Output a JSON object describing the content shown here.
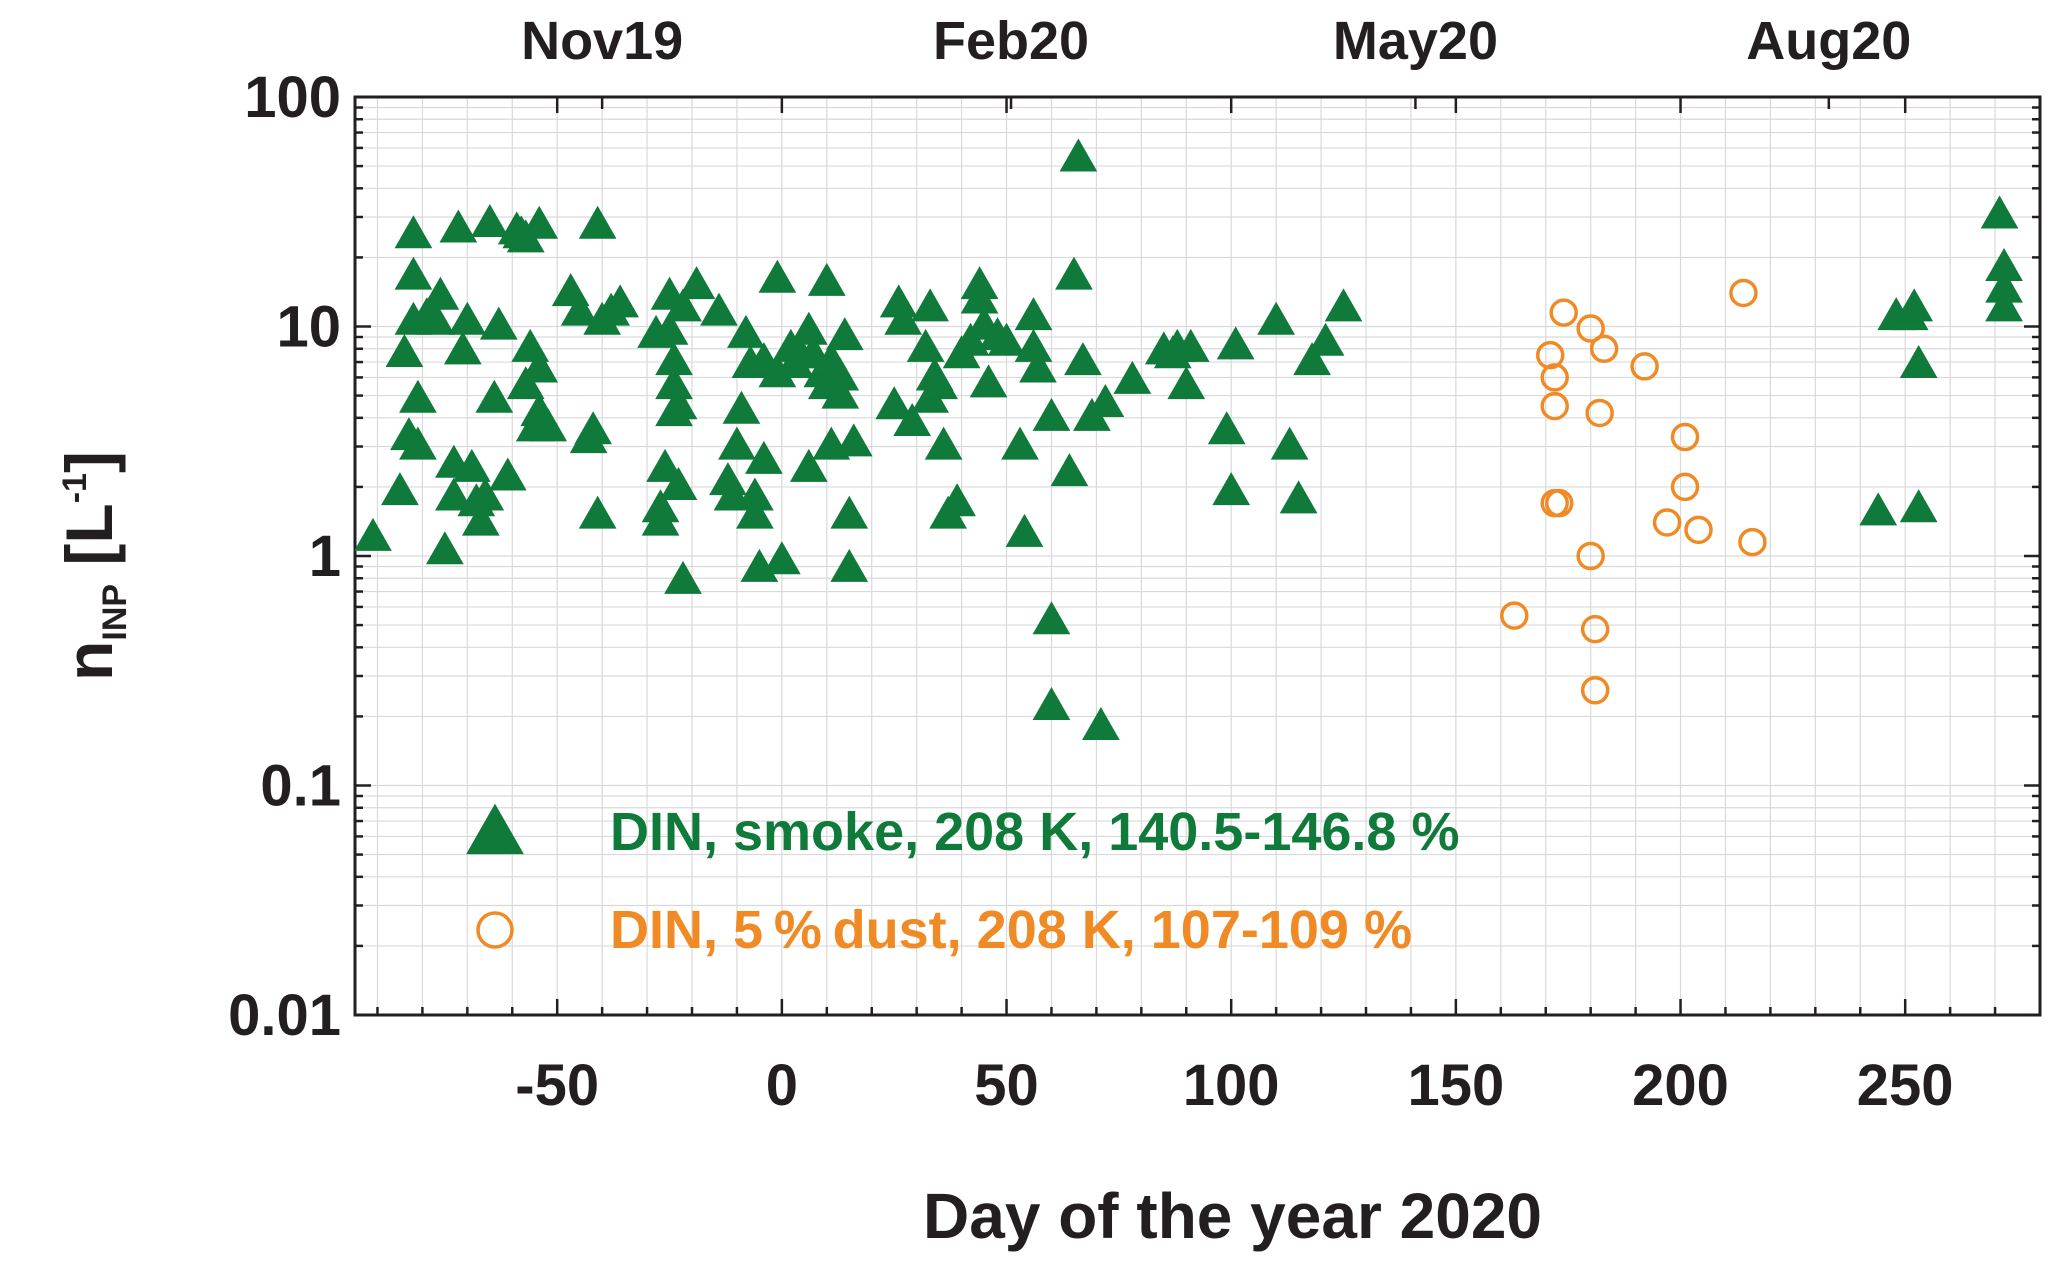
{
  "chart_data": {
    "type": "scatter",
    "title": "",
    "xlabel": "Day of the year 2020",
    "ylabel": {
      "main": "n",
      "subscript": "INP",
      "unit_prefix": "[L",
      "unit_sup": "-1",
      "unit_suffix": "]"
    },
    "xlim": [
      -95,
      280
    ],
    "ylim": [
      0.01,
      100
    ],
    "yscale": "log",
    "grid": true,
    "x_ticks": [
      -50,
      0,
      50,
      100,
      150,
      200,
      250
    ],
    "x_tick_labels": [
      "-50",
      "0",
      "50",
      "100",
      "150",
      "200",
      "250"
    ],
    "y_ticks": [
      0.01,
      0.1,
      1,
      10,
      100
    ],
    "y_tick_labels": [
      "0.01",
      "0.1",
      "1",
      "10",
      "100"
    ],
    "top_ticks": [
      {
        "x": -40,
        "label": "Nov19"
      },
      {
        "x": 51,
        "label": "Feb20"
      },
      {
        "x": 141,
        "label": "May20"
      },
      {
        "x": 233,
        "label": "Aug20"
      }
    ],
    "legend_placement": "bottom-left",
    "series": [
      {
        "name": "DIN, smoke, 208 K, 140.5-146.8 %",
        "marker": "triangle",
        "color": "#0f7a3a",
        "points": [
          [
            -91,
            1.2
          ],
          [
            -85,
            1.9
          ],
          [
            -84,
            7.6
          ],
          [
            -83,
            3.3
          ],
          [
            -82,
            25
          ],
          [
            -82,
            16.5
          ],
          [
            -82,
            10.5
          ],
          [
            -81,
            4.8
          ],
          [
            -81,
            3.0
          ],
          [
            -79,
            11
          ],
          [
            -77,
            10.5
          ],
          [
            -76,
            13.5
          ],
          [
            -75,
            1.05
          ],
          [
            -73,
            2.5
          ],
          [
            -73,
            1.8
          ],
          [
            -72,
            26.5
          ],
          [
            -71,
            7.8
          ],
          [
            -70,
            10.5
          ],
          [
            -69,
            2.4
          ],
          [
            -68,
            1.7
          ],
          [
            -67,
            1.4
          ],
          [
            -66,
            1.8
          ],
          [
            -65,
            28
          ],
          [
            -64,
            4.8
          ],
          [
            -63,
            10
          ],
          [
            -61,
            2.2
          ],
          [
            -59,
            26
          ],
          [
            -58,
            25
          ],
          [
            -57,
            5.5
          ],
          [
            -57,
            24
          ],
          [
            -56,
            8
          ],
          [
            -55,
            3.6
          ],
          [
            -54,
            4.2
          ],
          [
            -54,
            6.5
          ],
          [
            -54,
            27.5
          ],
          [
            -52,
            3.6
          ],
          [
            -47,
            14
          ],
          [
            -45,
            11.5
          ],
          [
            -43,
            3.2
          ],
          [
            -42,
            3.5
          ],
          [
            -41,
            1.5
          ],
          [
            -41,
            27.5
          ],
          [
            -40,
            10.5
          ],
          [
            -38,
            11.5
          ],
          [
            -36,
            12.5
          ],
          [
            -28,
            9.2
          ],
          [
            -27,
            1.6
          ],
          [
            -27,
            1.4
          ],
          [
            -26,
            2.4
          ],
          [
            -25,
            13.5
          ],
          [
            -25,
            9.5
          ],
          [
            -24,
            7.0
          ],
          [
            -24,
            5.5
          ],
          [
            -24,
            4.2
          ],
          [
            -23,
            4.5
          ],
          [
            -23,
            2.0
          ],
          [
            -22,
            12
          ],
          [
            -22,
            0.78
          ],
          [
            -19,
            15
          ],
          [
            -14,
            11.5
          ],
          [
            -12,
            2.1
          ],
          [
            -11,
            1.8
          ],
          [
            -10,
            3.0
          ],
          [
            -9,
            4.3
          ],
          [
            -8,
            9.2
          ],
          [
            -7,
            6.8
          ],
          [
            -6,
            1.8
          ],
          [
            -6,
            1.5
          ],
          [
            -5,
            0.88
          ],
          [
            -4,
            2.6
          ],
          [
            -4,
            7.0
          ],
          [
            -1,
            16
          ],
          [
            -1,
            6.2
          ],
          [
            0,
            0.95
          ],
          [
            2,
            8.0
          ],
          [
            3,
            6.8
          ],
          [
            4,
            7.5
          ],
          [
            6,
            2.4
          ],
          [
            6,
            9.5
          ],
          [
            7,
            7.5
          ],
          [
            9,
            6.2
          ],
          [
            10,
            15.5
          ],
          [
            10,
            5.5
          ],
          [
            11,
            3.0
          ],
          [
            11,
            7.0
          ],
          [
            13,
            5.0
          ],
          [
            13,
            6.0
          ],
          [
            14,
            9.0
          ],
          [
            15,
            1.5
          ],
          [
            15,
            0.88
          ],
          [
            16,
            3.1
          ],
          [
            25,
            4.5
          ],
          [
            26,
            12.5
          ],
          [
            27,
            10.5
          ],
          [
            29,
            3.8
          ],
          [
            32,
            8.0
          ],
          [
            33,
            4.8
          ],
          [
            33,
            12
          ],
          [
            34,
            6.0
          ],
          [
            35,
            5.5
          ],
          [
            36,
            3.0
          ],
          [
            37,
            1.5
          ],
          [
            39,
            1.7
          ],
          [
            40,
            7.5
          ],
          [
            42,
            8.5
          ],
          [
            44,
            15
          ],
          [
            44,
            13
          ],
          [
            45,
            10
          ],
          [
            46,
            5.6
          ],
          [
            48,
            9.0
          ],
          [
            50,
            8.5
          ],
          [
            53,
            3.0
          ],
          [
            54,
            1.25
          ],
          [
            56,
            11
          ],
          [
            56,
            8
          ],
          [
            57,
            6.5
          ],
          [
            60,
            4.0
          ],
          [
            60,
            0.52
          ],
          [
            60,
            0.22
          ],
          [
            64,
            2.3
          ],
          [
            65,
            16.5
          ],
          [
            66,
            54
          ],
          [
            67,
            7.0
          ],
          [
            69,
            4.0
          ],
          [
            71,
            0.18
          ],
          [
            72,
            4.6
          ],
          [
            78,
            5.8
          ],
          [
            85,
            7.8
          ],
          [
            87,
            7.5
          ],
          [
            88,
            8.0
          ],
          [
            90,
            5.5
          ],
          [
            91,
            8.0
          ],
          [
            99,
            3.5
          ],
          [
            100,
            1.9
          ],
          [
            101,
            8.2
          ],
          [
            110,
            10.5
          ],
          [
            113,
            3.0
          ],
          [
            115,
            1.75
          ],
          [
            118,
            7.0
          ],
          [
            121,
            8.5
          ],
          [
            125,
            12
          ]
        ]
      },
      {
        "name": "DIN, 5 % dust, 208 K, 107-109 %",
        "marker": "circle-open",
        "color": "#f08a24",
        "points": [
          [
            163,
            0.55
          ],
          [
            171,
            7.5
          ],
          [
            172,
            6.0
          ],
          [
            172,
            4.5
          ],
          [
            172,
            1.7
          ],
          [
            173,
            1.7
          ],
          [
            174,
            11.5
          ],
          [
            180,
            1.0
          ],
          [
            180,
            9.8
          ],
          [
            181,
            0.48
          ],
          [
            181,
            0.26
          ],
          [
            182,
            4.2
          ],
          [
            183,
            8.0
          ],
          [
            192,
            6.7
          ],
          [
            197,
            1.4
          ],
          [
            201,
            3.3
          ],
          [
            201,
            2.0
          ],
          [
            204,
            1.3
          ],
          [
            214,
            14
          ],
          [
            216,
            1.15
          ]
        ]
      },
      {
        "name": "",
        "marker": "triangle",
        "color": "#0f7a3a",
        "points": [
          [
            244,
            1.55
          ],
          [
            248,
            11
          ],
          [
            251,
            11
          ],
          [
            252,
            12
          ],
          [
            253,
            1.6
          ],
          [
            253,
            6.8
          ],
          [
            271,
            30.5
          ],
          [
            272,
            18
          ],
          [
            272,
            14.5
          ],
          [
            272,
            12
          ]
        ]
      }
    ]
  },
  "legend": [
    {
      "label": "DIN, smoke, 208 K, 140.5-146.8 %",
      "marker": "triangle",
      "color": "#0f7a3a"
    },
    {
      "label": "DIN, 5 % dust, 208 K, 107-109 %",
      "marker": "circle-open",
      "color": "#f08a24"
    }
  ]
}
